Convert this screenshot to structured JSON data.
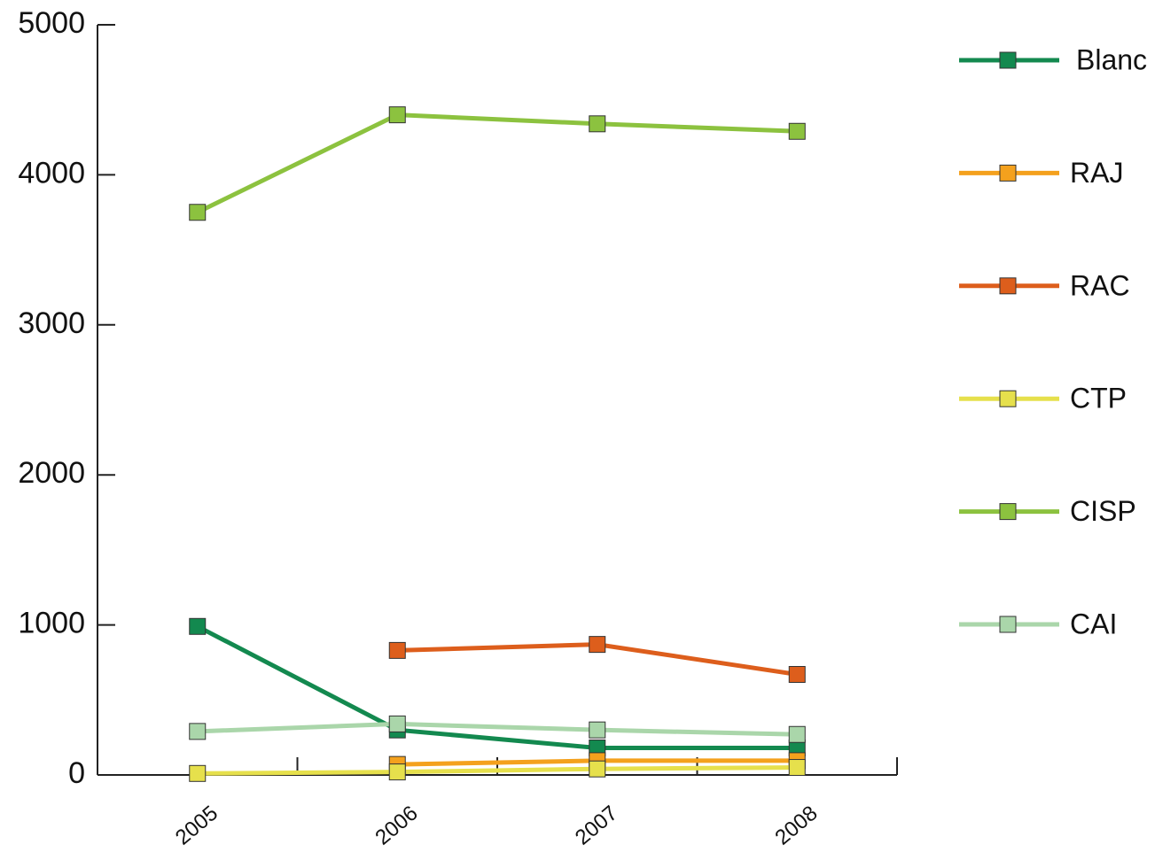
{
  "chart_data": {
    "type": "line",
    "categories": [
      "2005",
      "2006",
      "2007",
      "2008"
    ],
    "series": [
      {
        "name": "Blanc",
        "color": "#13894f",
        "values": [
          990,
          300,
          180,
          180
        ]
      },
      {
        "name": "RAJ",
        "color": "#f4a11d",
        "values": [
          null,
          70,
          95,
          95
        ]
      },
      {
        "name": "RAC",
        "color": "#dd5e1c",
        "values": [
          null,
          830,
          870,
          670
        ]
      },
      {
        "name": "CTP",
        "color": "#e6e04c",
        "values": [
          10,
          20,
          40,
          50
        ]
      },
      {
        "name": "CISP",
        "color": "#8cc23f",
        "values": [
          3750,
          4400,
          4340,
          4290
        ]
      },
      {
        "name": "CAI",
        "color": "#aad6aa",
        "values": [
          290,
          340,
          300,
          270
        ]
      }
    ],
    "ylim": [
      0,
      5000
    ],
    "yticks": [
      0,
      1000,
      2000,
      3000,
      4000,
      5000
    ]
  }
}
